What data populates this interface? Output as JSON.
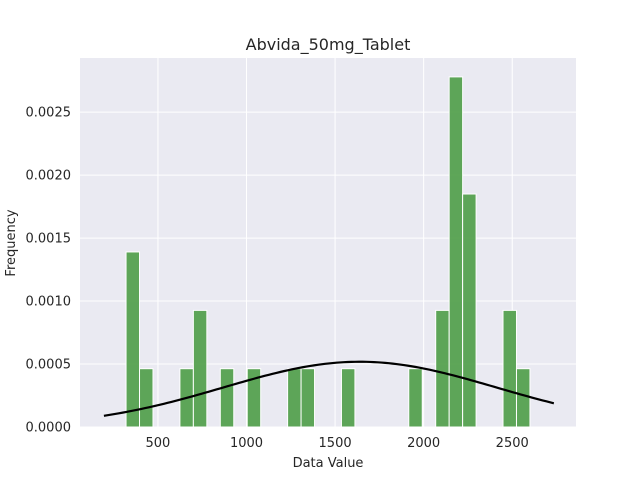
{
  "chart_data": {
    "type": "bar",
    "title": "Abvida_50mg_Tablet",
    "xlabel": "Data Value",
    "ylabel": "Frequency",
    "xlim": [
      60,
      2860
    ],
    "ylim": [
      0,
      0.00293
    ],
    "x_ticks": [
      500,
      1000,
      1500,
      2000,
      2500
    ],
    "y_ticks": [
      0,
      0.0005,
      0.001,
      0.0015,
      0.002,
      0.0025
    ],
    "x_tick_labels": [
      "500",
      "1000",
      "1500",
      "2000",
      "2500"
    ],
    "y_tick_labels": [
      "0.0000",
      "0.0005",
      "0.0010",
      "0.0015",
      "0.0020",
      "0.0025"
    ],
    "bin_width": 76,
    "bins": [
      {
        "left": 320,
        "value": 0.00139
      },
      {
        "left": 396,
        "value": 0.000463
      },
      {
        "left": 472,
        "value": 0
      },
      {
        "left": 548,
        "value": 0
      },
      {
        "left": 624,
        "value": 0.000463
      },
      {
        "left": 700,
        "value": 0.000926
      },
      {
        "left": 776,
        "value": 0
      },
      {
        "left": 852,
        "value": 0.000463
      },
      {
        "left": 928,
        "value": 0
      },
      {
        "left": 1004,
        "value": 0.000463
      },
      {
        "left": 1080,
        "value": 0
      },
      {
        "left": 1156,
        "value": 0
      },
      {
        "left": 1232,
        "value": 0.000463
      },
      {
        "left": 1308,
        "value": 0.000463
      },
      {
        "left": 1384,
        "value": 0
      },
      {
        "left": 1460,
        "value": 0
      },
      {
        "left": 1536,
        "value": 0.000463
      },
      {
        "left": 1612,
        "value": 0
      },
      {
        "left": 1688,
        "value": 0
      },
      {
        "left": 1764,
        "value": 0
      },
      {
        "left": 1840,
        "value": 0
      },
      {
        "left": 1916,
        "value": 0.000463
      },
      {
        "left": 1992,
        "value": 0
      },
      {
        "left": 2068,
        "value": 0.000926
      },
      {
        "left": 2144,
        "value": 0.00278
      },
      {
        "left": 2220,
        "value": 0.00185
      },
      {
        "left": 2296,
        "value": 0
      },
      {
        "left": 2372,
        "value": 0
      },
      {
        "left": 2448,
        "value": 0.000926
      },
      {
        "left": 2524,
        "value": 0.000463
      }
    ],
    "density_curve": {
      "type": "normal_pdf",
      "mean": 1640,
      "std": 770,
      "x_range": [
        195,
        2735
      ],
      "color": "#000000"
    },
    "grid": true,
    "colors": {
      "bar_fill": "#55a14f",
      "bar_edge": "#ffffff",
      "plot_background": "#eaeaf2",
      "grid": "#ffffff",
      "curve": "#000000"
    }
  }
}
